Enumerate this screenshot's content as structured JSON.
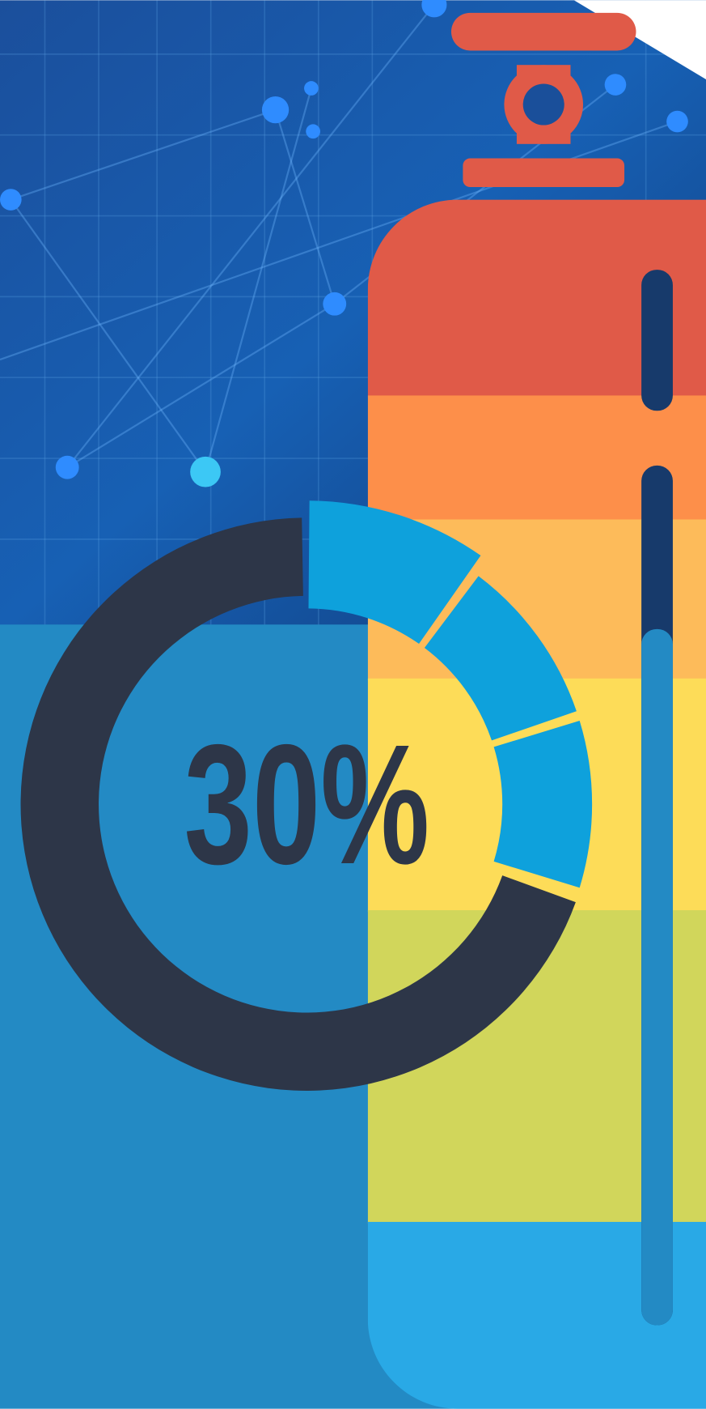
{
  "chart_data": {
    "type": "donut",
    "values": [
      30
    ],
    "value_labels": [
      "30%"
    ],
    "color": "#0ea1dc",
    "track_color": "#2d3648",
    "segments": 3
  }
}
